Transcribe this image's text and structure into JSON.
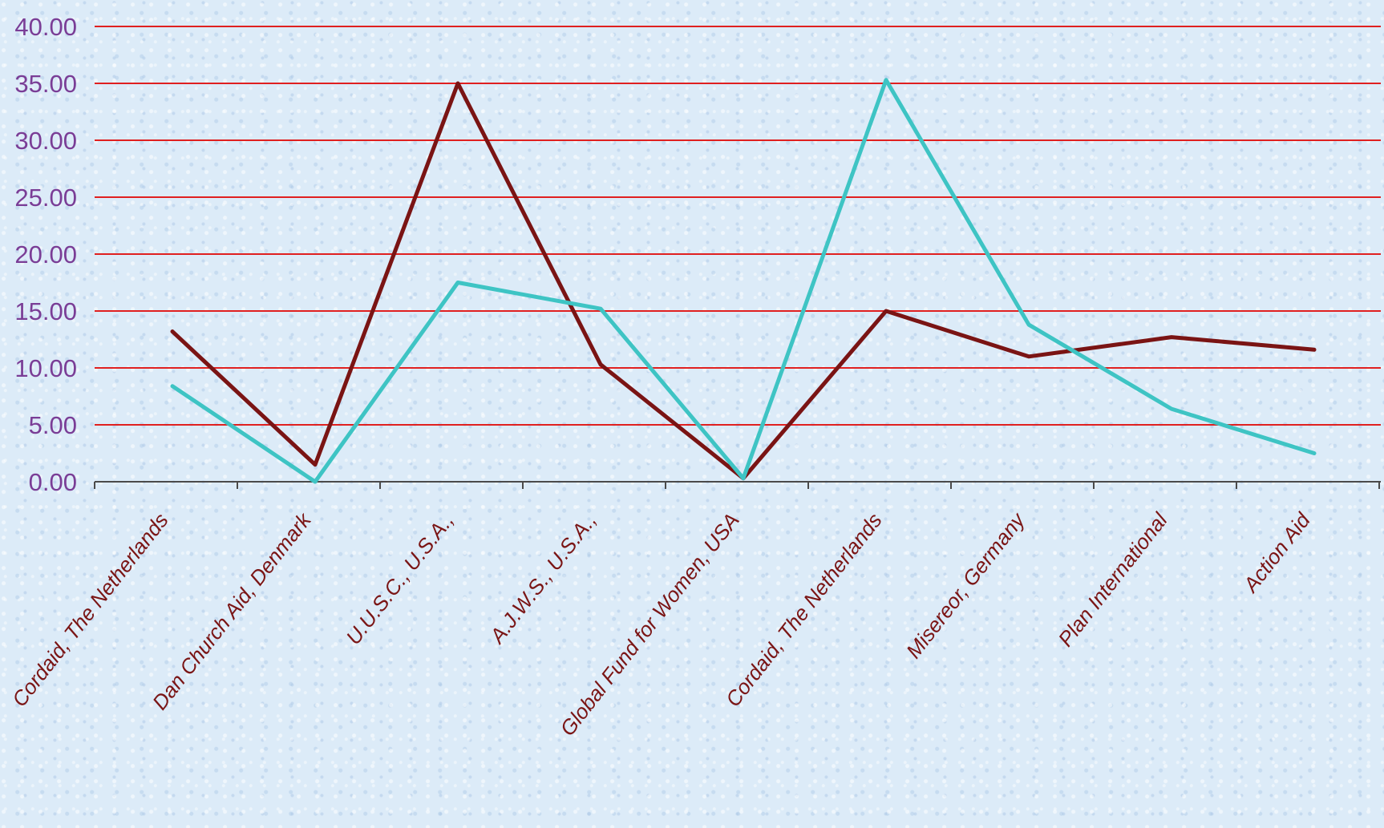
{
  "chart_data": {
    "type": "line",
    "title": "",
    "xlabel": "",
    "ylabel": "",
    "categories": [
      "Cordaid, The Netherlands",
      "Dan Church Aid, Denmark",
      "U.U.S.C., U.S.A.,",
      "A.J.W.S., U.S.A.,",
      "Global Fund for Women, USA",
      "Cordaid, The Netherlands",
      "Misereor, Germany",
      "Plan International",
      "Action Aid"
    ],
    "series": [
      {
        "color": "#7a1414",
        "values": [
          13.2,
          1.5,
          35.0,
          10.3,
          0.3,
          15.0,
          11.0,
          12.7,
          11.6
        ]
      },
      {
        "color": "#3ec4c4",
        "values": [
          8.4,
          0.0,
          17.5,
          15.2,
          0.3,
          35.3,
          13.8,
          6.4,
          2.5
        ]
      }
    ],
    "ylim": [
      0,
      40
    ],
    "yticks": [
      "0.00",
      "5.00",
      "10.00",
      "15.00",
      "20.00",
      "25.00",
      "30.00",
      "35.00",
      "40.00"
    ],
    "grid": true,
    "grid_color": "#e02020",
    "axis_color": "#4a4a4a",
    "ytick_label_color": "#7a3d96",
    "xtick_label_color": "#7a1515",
    "legend": "none"
  }
}
